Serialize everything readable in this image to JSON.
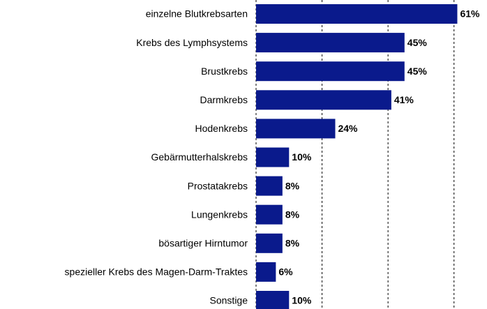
{
  "chart_data": {
    "type": "barh",
    "categories": [
      "einzelne Blutkrebsarten",
      "Krebs des Lymphsystems",
      "Brustkrebs",
      "Darmkrebs",
      "Hodenkrebs",
      "Gebärmutterhalskrebs",
      "Prostatakrebs",
      "Lungenkrebs",
      "bösartiger Hirntumor",
      "spezieller Krebs des Magen-Darm-Traktes",
      "Sonstige"
    ],
    "values": [
      61,
      45,
      45,
      41,
      24,
      10,
      8,
      8,
      8,
      6,
      10
    ],
    "value_labels": [
      "61%",
      "45%",
      "45%",
      "41%",
      "24%",
      "10%",
      "8%",
      "8%",
      "8%",
      "6%",
      "10%"
    ],
    "color": "#0a1a8c",
    "xlim": [
      0,
      70
    ],
    "xticks": [
      0,
      20,
      40,
      60
    ],
    "grid": true
  }
}
